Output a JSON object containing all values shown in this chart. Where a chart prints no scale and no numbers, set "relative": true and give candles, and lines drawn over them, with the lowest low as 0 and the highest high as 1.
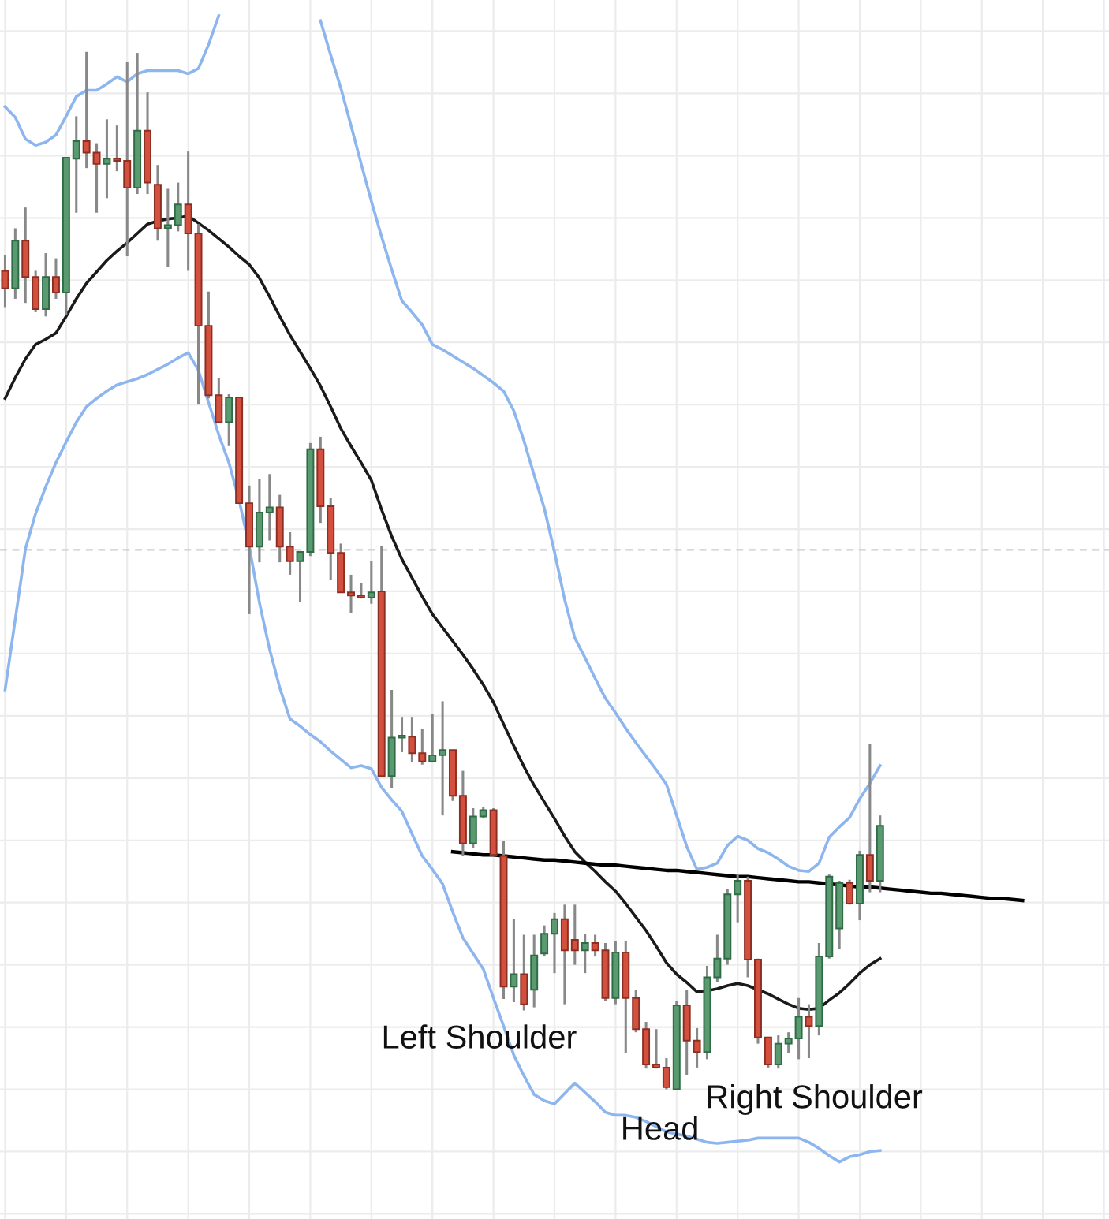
{
  "chart_data": {
    "type": "candlestick",
    "relative": true,
    "grid": true,
    "legend": false,
    "ylim": [
      -0.125,
      1.05
    ],
    "categories": [
      null,
      null,
      null,
      null,
      null,
      null,
      null,
      null,
      null,
      null,
      null,
      null,
      null,
      null,
      null,
      null,
      null,
      null,
      null,
      null,
      null,
      null,
      null,
      null,
      null,
      null,
      null,
      null,
      null,
      null,
      null,
      null,
      null,
      null,
      null,
      null,
      null,
      null,
      null,
      null,
      null,
      null,
      null,
      null,
      null,
      null,
      null,
      null,
      null,
      null,
      null,
      null,
      null,
      null,
      null,
      null,
      null,
      null,
      null,
      null,
      null,
      null,
      null,
      null,
      null,
      null,
      null,
      null,
      null,
      null,
      null,
      null,
      null,
      null,
      null,
      null,
      null,
      null,
      null,
      null,
      null,
      null,
      null,
      null,
      null,
      null,
      null,
      null,
      null,
      null,
      null,
      null,
      null,
      null,
      null,
      null,
      null,
      null,
      null,
      null,
      null,
      null,
      null,
      null,
      null,
      null,
      null,
      null,
      null
    ],
    "ohlc": [
      [
        0.789,
        0.804,
        0.754,
        0.772
      ],
      [
        0.772,
        0.83,
        0.762,
        0.818
      ],
      [
        0.818,
        0.85,
        0.758,
        0.783
      ],
      [
        0.783,
        0.789,
        0.749,
        0.752
      ],
      [
        0.752,
        0.806,
        0.745,
        0.783
      ],
      [
        0.783,
        0.801,
        0.762,
        0.768
      ],
      [
        0.768,
        0.898,
        0.746,
        0.898
      ],
      [
        0.897,
        0.938,
        0.845,
        0.914
      ],
      [
        0.914,
        1.0,
        0.888,
        0.903
      ],
      [
        0.903,
        0.912,
        0.845,
        0.892
      ],
      [
        0.892,
        0.935,
        0.859,
        0.897
      ],
      [
        0.897,
        0.929,
        0.885,
        0.895
      ],
      [
        0.895,
        0.99,
        0.803,
        0.869
      ],
      [
        0.869,
        0.999,
        0.863,
        0.924
      ],
      [
        0.924,
        0.961,
        0.863,
        0.874
      ],
      [
        0.872,
        0.891,
        0.818,
        0.83
      ],
      [
        0.83,
        0.868,
        0.793,
        0.833
      ],
      [
        0.833,
        0.874,
        0.827,
        0.853
      ],
      [
        0.853,
        0.904,
        0.789,
        0.825
      ],
      [
        0.825,
        0.834,
        0.66,
        0.736
      ],
      [
        0.736,
        0.769,
        0.666,
        0.669
      ],
      [
        0.669,
        0.686,
        0.643,
        0.643
      ],
      [
        0.643,
        0.67,
        0.62,
        0.667
      ],
      [
        0.667,
        0.667,
        0.565,
        0.565
      ],
      [
        0.565,
        0.582,
        0.458,
        0.523
      ],
      [
        0.523,
        0.588,
        0.508,
        0.556
      ],
      [
        0.556,
        0.593,
        0.529,
        0.561
      ],
      [
        0.561,
        0.573,
        0.508,
        0.523
      ],
      [
        0.523,
        0.537,
        0.496,
        0.509
      ],
      [
        0.509,
        0.518,
        0.47,
        0.518
      ],
      [
        0.518,
        0.623,
        0.514,
        0.617
      ],
      [
        0.617,
        0.629,
        0.546,
        0.562
      ],
      [
        0.562,
        0.57,
        0.491,
        0.517
      ],
      [
        0.517,
        0.526,
        0.479,
        0.479
      ],
      [
        0.479,
        0.496,
        0.459,
        0.476
      ],
      [
        0.476,
        0.488,
        0.473,
        0.474
      ],
      [
        0.474,
        0.509,
        0.468,
        0.479
      ],
      [
        0.48,
        0.524,
        0.301,
        0.302
      ],
      [
        0.302,
        0.385,
        0.29,
        0.339
      ],
      [
        0.339,
        0.359,
        0.325,
        0.34
      ],
      [
        0.34,
        0.359,
        0.315,
        0.324
      ],
      [
        0.324,
        0.347,
        0.313,
        0.316
      ],
      [
        0.316,
        0.362,
        0.315,
        0.322
      ],
      [
        0.322,
        0.374,
        0.264,
        0.327
      ],
      [
        0.327,
        0.327,
        0.278,
        0.283
      ],
      [
        0.283,
        0.307,
        0.225,
        0.237
      ],
      [
        0.237,
        0.271,
        0.233,
        0.263
      ],
      [
        0.263,
        0.272,
        0.261,
        0.269
      ],
      [
        0.269,
        0.271,
        0.225,
        0.226
      ],
      [
        0.225,
        0.239,
        0.087,
        0.099
      ],
      [
        0.099,
        0.164,
        0.084,
        0.111
      ],
      [
        0.111,
        0.149,
        0.076,
        0.082
      ],
      [
        0.096,
        0.149,
        0.079,
        0.129
      ],
      [
        0.131,
        0.158,
        0.128,
        0.15
      ],
      [
        0.15,
        0.17,
        0.112,
        0.164
      ],
      [
        0.164,
        0.178,
        0.082,
        0.134
      ],
      [
        0.144,
        0.178,
        0.12,
        0.134
      ],
      [
        0.134,
        0.15,
        0.112,
        0.141
      ],
      [
        0.141,
        0.149,
        0.128,
        0.134
      ],
      [
        0.134,
        0.141,
        0.085,
        0.088
      ],
      [
        0.088,
        0.143,
        0.082,
        0.132
      ],
      [
        0.132,
        0.143,
        0.035,
        0.088
      ],
      [
        0.088,
        0.096,
        0.055,
        0.058
      ],
      [
        0.058,
        0.065,
        0.02,
        0.024
      ],
      [
        0.024,
        0.058,
        0.02,
        0.021
      ],
      [
        0.021,
        0.03,
        0.0,
        0.002
      ],
      [
        0.0,
        0.085,
        0.0,
        0.081
      ],
      [
        0.081,
        0.096,
        0.014,
        0.047
      ],
      [
        0.047,
        0.059,
        0.021,
        0.036
      ],
      [
        0.036,
        0.119,
        0.029,
        0.108
      ],
      [
        0.108,
        0.149,
        0.103,
        0.126
      ],
      [
        0.126,
        0.193,
        0.12,
        0.188
      ],
      [
        0.188,
        0.207,
        0.161,
        0.201
      ],
      [
        0.201,
        0.205,
        0.108,
        0.125
      ],
      [
        0.125,
        0.126,
        0.044,
        0.05
      ],
      [
        0.05,
        0.05,
        0.021,
        0.024
      ],
      [
        0.024,
        0.052,
        0.02,
        0.044
      ],
      [
        0.044,
        0.055,
        0.035,
        0.049
      ],
      [
        0.049,
        0.088,
        0.029,
        0.07
      ],
      [
        0.07,
        0.082,
        0.03,
        0.061
      ],
      [
        0.061,
        0.141,
        0.052,
        0.128
      ],
      [
        0.128,
        0.207,
        0.126,
        0.205
      ],
      [
        0.155,
        0.201,
        0.135,
        0.199
      ],
      [
        0.199,
        0.202,
        0.178,
        0.179
      ],
      [
        0.179,
        0.23,
        0.163,
        0.226
      ],
      [
        0.226,
        0.333,
        0.19,
        0.201
      ],
      [
        0.201,
        0.264,
        0.19,
        0.254
      ],
      null,
      null,
      null,
      null,
      null,
      null,
      null,
      null,
      null,
      null,
      null,
      null,
      null,
      null,
      null,
      null,
      null,
      null,
      null,
      null,
      null,
      null
    ],
    "series": [
      {
        "type": "line",
        "color": "#8db6ee",
        "values": [
          0.947,
          0.937,
          0.916,
          0.91,
          0.913,
          0.92,
          0.938,
          0.957,
          0.963,
          0.963,
          0.969,
          0.976,
          0.971,
          0.979,
          0.982,
          0.982,
          0.982,
          0.982,
          0.979,
          0.984,
          1.007,
          1.035,
          null,
          null,
          null,
          null,
          null,
          null,
          null,
          null,
          null,
          1.03,
          0.997,
          0.965,
          0.929,
          0.892,
          0.856,
          0.822,
          0.79,
          0.76,
          0.749,
          0.737,
          0.718,
          0.713,
          0.707,
          0.701,
          0.695,
          0.688,
          0.681,
          0.673,
          0.654,
          0.625,
          0.592,
          0.56,
          0.518,
          0.472,
          0.435,
          0.416,
          0.396,
          0.377,
          0.363,
          0.348,
          0.334,
          0.321,
          0.308,
          0.294,
          0.264,
          0.234,
          0.212,
          0.214,
          0.218,
          0.235,
          0.244,
          0.24,
          0.232,
          0.228,
          0.222,
          0.215,
          0.211,
          0.21,
          0.218,
          0.243,
          0.253,
          0.262,
          0.28,
          0.295,
          0.312,
          null,
          null,
          null,
          null,
          null,
          null,
          null,
          null,
          null,
          null,
          null,
          null,
          null,
          null,
          null,
          null,
          null,
          null,
          null,
          null,
          null,
          null
        ]
      },
      {
        "type": "line",
        "color": "#8db6ee",
        "values": [
          0.385,
          0.453,
          0.521,
          0.555,
          0.581,
          0.604,
          0.624,
          0.643,
          0.658,
          0.666,
          0.673,
          0.679,
          0.682,
          0.685,
          0.689,
          0.694,
          0.699,
          0.705,
          0.71,
          0.693,
          0.662,
          0.631,
          0.604,
          0.568,
          0.523,
          0.469,
          0.424,
          0.387,
          0.357,
          0.35,
          0.342,
          0.335,
          0.326,
          0.318,
          0.31,
          0.312,
          0.309,
          0.291,
          0.279,
          0.268,
          0.246,
          0.225,
          0.212,
          0.198,
          0.171,
          0.146,
          0.131,
          0.116,
          0.088,
          0.061,
          0.033,
          0.013,
          -0.005,
          -0.011,
          -0.014,
          -0.004,
          0.006,
          -0.003,
          -0.012,
          -0.022,
          -0.025,
          -0.025,
          -0.027,
          -0.031,
          -0.036,
          -0.041,
          -0.043,
          -0.045,
          -0.048,
          -0.051,
          -0.052,
          -0.051,
          -0.05,
          -0.049,
          -0.047,
          -0.047,
          -0.047,
          -0.047,
          -0.047,
          -0.051,
          -0.057,
          -0.064,
          -0.07,
          -0.065,
          -0.063,
          -0.06,
          -0.059,
          null,
          null,
          null,
          null,
          null,
          null,
          null,
          null,
          null,
          null,
          null,
          null,
          null,
          null,
          null,
          null,
          null,
          null,
          null,
          null,
          null,
          null
        ]
      },
      {
        "type": "line",
        "color": "#1a1a1a",
        "values": [
          0.666,
          0.686,
          0.704,
          0.718,
          0.723,
          0.729,
          0.745,
          0.762,
          0.777,
          0.788,
          0.799,
          0.808,
          0.816,
          0.825,
          0.834,
          0.837,
          0.839,
          0.84,
          0.842,
          0.835,
          0.828,
          0.82,
          0.812,
          0.803,
          0.795,
          0.782,
          0.764,
          0.745,
          0.727,
          0.711,
          0.695,
          0.678,
          0.658,
          0.637,
          0.62,
          0.604,
          0.587,
          0.559,
          0.533,
          0.511,
          0.493,
          0.475,
          0.458,
          0.445,
          0.432,
          0.419,
          0.405,
          0.39,
          0.373,
          0.352,
          0.331,
          0.311,
          0.293,
          0.277,
          0.261,
          0.244,
          0.229,
          0.219,
          0.21,
          0.2,
          0.191,
          0.179,
          0.166,
          0.153,
          0.138,
          0.122,
          0.111,
          0.103,
          0.094,
          0.095,
          0.097,
          0.1,
          0.102,
          0.1,
          0.096,
          0.092,
          0.087,
          0.082,
          0.078,
          0.077,
          0.078,
          0.086,
          0.093,
          0.102,
          0.112,
          0.12,
          0.126,
          null,
          null,
          null,
          null,
          null,
          null,
          null,
          null,
          null,
          null,
          null,
          null,
          null,
          null,
          null,
          null,
          null,
          null,
          null,
          null,
          null,
          null
        ]
      },
      {
        "type": "line",
        "color": "#000000",
        "values": [
          null,
          null,
          null,
          null,
          null,
          null,
          null,
          null,
          null,
          null,
          null,
          null,
          null,
          null,
          null,
          null,
          null,
          null,
          null,
          null,
          null,
          null,
          null,
          null,
          null,
          null,
          null,
          null,
          null,
          null,
          null,
          null,
          null,
          null,
          null,
          null,
          null,
          null,
          null,
          null,
          null,
          null,
          null,
          null,
          0.229,
          0.228,
          0.227,
          0.226,
          0.226,
          0.225,
          0.224,
          0.223,
          0.222,
          0.221,
          0.221,
          0.22,
          0.219,
          0.218,
          0.217,
          0.216,
          0.216,
          0.215,
          0.214,
          0.213,
          0.212,
          0.211,
          0.211,
          0.21,
          0.209,
          0.208,
          0.207,
          0.206,
          0.205,
          0.205,
          0.204,
          0.203,
          0.202,
          0.201,
          0.2,
          0.2,
          0.199,
          0.198,
          0.197,
          0.196,
          0.195,
          0.195,
          0.194,
          0.193,
          0.192,
          0.191,
          0.19,
          0.189,
          0.189,
          0.188,
          0.187,
          0.186,
          0.185,
          0.184,
          0.184,
          0.183,
          0.182,
          null,
          null,
          null,
          null,
          null,
          null,
          null,
          null
        ]
      }
    ],
    "ref_lines": [
      {
        "axis": "y",
        "value": 0.52,
        "color": "#cccccc",
        "line_style": "dashed"
      }
    ],
    "annotations": [
      "Left Shoulder",
      "Head",
      "Right Shoulder"
    ]
  }
}
